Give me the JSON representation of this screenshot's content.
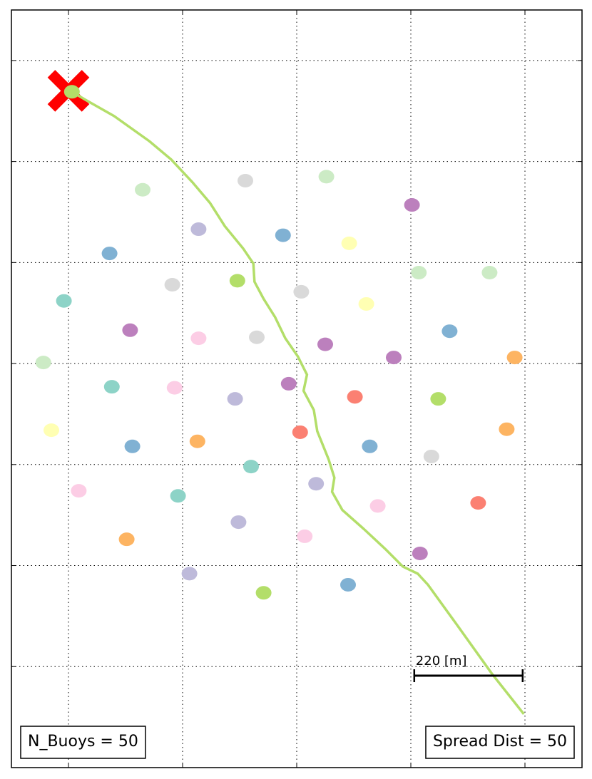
{
  "chart_data": {
    "type": "scatter",
    "xlim": [
      -0.5,
      4.5
    ],
    "ylim": [
      -1,
      6.5
    ],
    "xticks": [
      0,
      1,
      2,
      3,
      4
    ],
    "yticks": [
      0,
      1,
      2,
      3,
      4,
      5,
      6
    ],
    "grid": true,
    "points": {
      "x": [
        0.03,
        0.65,
        1.55,
        2.26,
        3.01,
        1.14,
        1.88,
        2.46,
        0.36,
        3.07,
        3.69,
        0.91,
        1.48,
        2.04,
        -0.04,
        2.61,
        0.54,
        1.14,
        1.65,
        2.25,
        3.34,
        2.85,
        3.91,
        -0.22,
        0.38,
        0.93,
        1.46,
        1.93,
        2.51,
        3.24,
        -0.15,
        0.56,
        1.13,
        2.03,
        2.64,
        3.84,
        3.18,
        1.6,
        2.17,
        0.09,
        0.96,
        2.71,
        3.59,
        1.49,
        0.51,
        2.07,
        3.08,
        1.06,
        1.71,
        2.45
      ],
      "y": [
        5.69,
        4.72,
        4.81,
        4.85,
        4.57,
        4.33,
        4.27,
        4.19,
        4.09,
        3.9,
        3.9,
        3.78,
        3.82,
        3.71,
        3.62,
        3.59,
        3.33,
        3.25,
        3.26,
        3.19,
        3.32,
        3.06,
        3.06,
        3.01,
        2.77,
        2.76,
        2.65,
        2.8,
        2.67,
        2.65,
        2.34,
        2.18,
        2.23,
        2.32,
        2.18,
        2.35,
        2.08,
        1.98,
        1.81,
        1.74,
        1.69,
        1.59,
        1.62,
        1.43,
        1.26,
        1.29,
        1.12,
        0.92,
        0.73,
        0.81
      ],
      "colors": [
        "#b3de69",
        "#ccebc5",
        "#d9d9d9",
        "#ccebc5",
        "#bc80bd",
        "#bebada",
        "#80b1d3",
        "#ffffb3",
        "#80b1d3",
        "#ccebc5",
        "#ccebc5",
        "#d9d9d9",
        "#b3de69",
        "#d9d9d9",
        "#8dd3c7",
        "#ffffb3",
        "#bc80bd",
        "#fccde5",
        "#d9d9d9",
        "#bc80bd",
        "#80b1d3",
        "#bc80bd",
        "#fdb462",
        "#ccebc5",
        "#8dd3c7",
        "#fccde5",
        "#bebada",
        "#bc80bd",
        "#fb8072",
        "#b3de69",
        "#ffffb3",
        "#80b1d3",
        "#fdb462",
        "#fb8072",
        "#80b1d3",
        "#fdb462",
        "#d9d9d9",
        "#8dd3c7",
        "#bebada",
        "#fccde5",
        "#8dd3c7",
        "#fccde5",
        "#fb8072",
        "#bebada",
        "#fdb462",
        "#fccde5",
        "#bc80bd",
        "#bebada",
        "#b3de69",
        "#80b1d3"
      ]
    },
    "track": {
      "color": "#b3de69",
      "x": [
        0.03,
        0.15,
        0.4,
        0.71,
        0.9,
        1.09,
        1.24,
        1.37,
        1.53,
        1.62,
        1.63,
        1.71,
        1.81,
        1.9,
        2.01,
        2.09,
        2.06,
        2.15,
        2.18,
        2.28,
        2.33,
        2.31,
        2.4,
        2.59,
        2.78,
        2.93,
        3.06,
        3.15,
        3.4,
        3.71,
        3.99
      ],
      "y": [
        5.69,
        5.61,
        5.45,
        5.2,
        5.02,
        4.79,
        4.59,
        4.36,
        4.14,
        3.99,
        3.81,
        3.64,
        3.46,
        3.25,
        3.07,
        2.89,
        2.73,
        2.54,
        2.33,
        2.05,
        1.87,
        1.73,
        1.55,
        1.36,
        1.16,
        0.99,
        0.92,
        0.81,
        0.42,
        -0.07,
        -0.47
      ]
    },
    "start": {
      "x": 0,
      "y": 5.7,
      "color": "#ff0000"
    },
    "scale_bar": {
      "label": "220 [m]",
      "x": [
        3.03,
        3.98
      ],
      "y": -0.09
    },
    "annotations": [
      "N_Buoys = 50",
      "Spread Dist = 50"
    ]
  }
}
